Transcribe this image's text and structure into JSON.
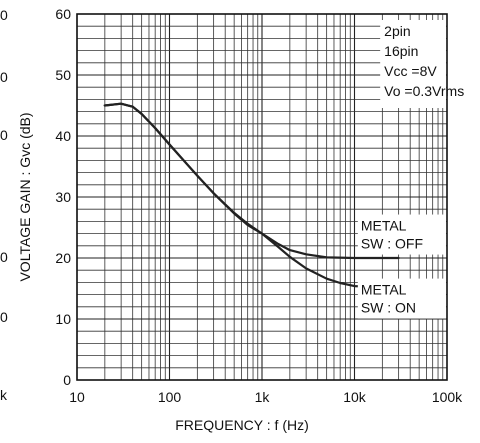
{
  "chart_data": {
    "type": "line",
    "xscale": "log",
    "xlim": [
      10,
      100000
    ],
    "ylim": [
      0,
      60
    ],
    "grid": true,
    "xlabel": "FREQUENCY : f (Hz)",
    "ylabel": "VOLTAGE GAIN : Gvc (dB)",
    "xticks": [
      {
        "value": 10,
        "label": "10"
      },
      {
        "value": 100,
        "label": "100"
      },
      {
        "value": 1000,
        "label": "1k"
      },
      {
        "value": 10000,
        "label": "10k"
      },
      {
        "value": 100000,
        "label": "100k"
      }
    ],
    "yticks": [
      {
        "value": 0,
        "label": "0"
      },
      {
        "value": 10,
        "label": "10"
      },
      {
        "value": 20,
        "label": "20"
      },
      {
        "value": 30,
        "label": "30"
      },
      {
        "value": 40,
        "label": "40"
      },
      {
        "value": 50,
        "label": "50"
      },
      {
        "value": 60,
        "label": "60"
      }
    ],
    "conditions": [
      "2pin",
      "16pin",
      "Vcc =8V",
      "Vo =0.3Vrms"
    ],
    "series": [
      {
        "name": "METAL SW : OFF",
        "points": [
          {
            "x": 20,
            "y": 45
          },
          {
            "x": 30,
            "y": 45.3
          },
          {
            "x": 40,
            "y": 44.8
          },
          {
            "x": 50,
            "y": 43.6
          },
          {
            "x": 70,
            "y": 41.3
          },
          {
            "x": 100,
            "y": 38.6
          },
          {
            "x": 150,
            "y": 35.6
          },
          {
            "x": 200,
            "y": 33.5
          },
          {
            "x": 300,
            "y": 30.6
          },
          {
            "x": 500,
            "y": 27.3
          },
          {
            "x": 700,
            "y": 25.4
          },
          {
            "x": 1000,
            "y": 24
          },
          {
            "x": 1500,
            "y": 22.3
          },
          {
            "x": 2000,
            "y": 21.3
          },
          {
            "x": 3000,
            "y": 20.6
          },
          {
            "x": 5000,
            "y": 20.1
          },
          {
            "x": 10000,
            "y": 20
          },
          {
            "x": 30000,
            "y": 20
          }
        ]
      },
      {
        "name": "METAL SW : ON",
        "points": [
          {
            "x": 20,
            "y": 45
          },
          {
            "x": 30,
            "y": 45.3
          },
          {
            "x": 40,
            "y": 44.8
          },
          {
            "x": 50,
            "y": 43.6
          },
          {
            "x": 70,
            "y": 41.3
          },
          {
            "x": 100,
            "y": 38.6
          },
          {
            "x": 150,
            "y": 35.6
          },
          {
            "x": 200,
            "y": 33.5
          },
          {
            "x": 300,
            "y": 30.6
          },
          {
            "x": 500,
            "y": 27.4
          },
          {
            "x": 700,
            "y": 25.6
          },
          {
            "x": 1000,
            "y": 24
          },
          {
            "x": 1500,
            "y": 21.8
          },
          {
            "x": 2000,
            "y": 20.2
          },
          {
            "x": 3000,
            "y": 18.3
          },
          {
            "x": 5000,
            "y": 16.6
          },
          {
            "x": 7000,
            "y": 15.9
          },
          {
            "x": 10000,
            "y": 15.4
          },
          {
            "x": 30000,
            "y": 15.2
          }
        ]
      }
    ],
    "annotations": [
      {
        "name": "METAL SW : OFF",
        "lines": [
          "METAL",
          "SW : OFF"
        ],
        "x": 12000,
        "y": 24.5
      },
      {
        "name": "METAL SW : ON",
        "lines": [
          "METAL",
          "SW : ON"
        ],
        "x": 12000,
        "y": 14
      }
    ],
    "left_labels": [
      "0",
      "0",
      "0",
      "0",
      "0",
      "k"
    ]
  }
}
